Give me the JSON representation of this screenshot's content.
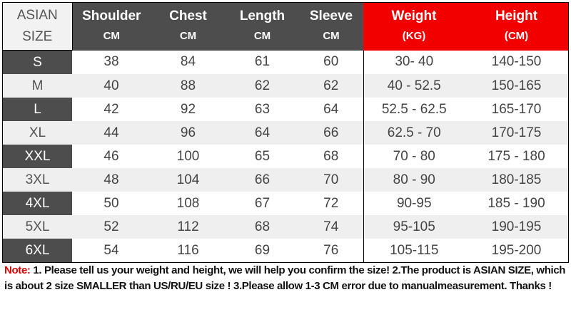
{
  "header": {
    "size_label": [
      "ASIAN",
      "SIZE"
    ],
    "columns": [
      {
        "name": "Shoulder",
        "unit": "CM"
      },
      {
        "name": "Chest",
        "unit": "CM"
      },
      {
        "name": "Length",
        "unit": "CM"
      },
      {
        "name": "Sleeve",
        "unit": "CM"
      },
      {
        "name": "Weight",
        "unit": "(KG)"
      },
      {
        "name": "Height",
        "unit": "(CM)"
      }
    ]
  },
  "rows": [
    {
      "size": "S",
      "values": [
        "38",
        "84",
        "61",
        "60",
        "30- 40",
        "140-150"
      ]
    },
    {
      "size": "M",
      "values": [
        "40",
        "88",
        "62",
        "62",
        "40 - 52.5",
        "150-165"
      ]
    },
    {
      "size": "L",
      "values": [
        "42",
        "92",
        "63",
        "64",
        "52.5 - 62.5",
        "165-170"
      ]
    },
    {
      "size": "XL",
      "values": [
        "44",
        "96",
        "64",
        "66",
        "62.5 - 70",
        "170-175"
      ]
    },
    {
      "size": "XXL",
      "values": [
        "46",
        "100",
        "65",
        "68",
        "70  - 80",
        "175 - 180"
      ]
    },
    {
      "size": "3XL",
      "values": [
        "48",
        "104",
        "66",
        "70",
        "80  - 90",
        "180-185"
      ]
    },
    {
      "size": "4XL",
      "values": [
        "50",
        "108",
        "67",
        "72",
        "90-95",
        "185 - 190"
      ]
    },
    {
      "size": "5XL",
      "values": [
        "52",
        "112",
        "68",
        "74",
        "95-105",
        "190-195"
      ]
    },
    {
      "size": "6XL",
      "values": [
        "54",
        "116",
        "69",
        "76",
        "105-115",
        "195-200"
      ]
    }
  ],
  "note": {
    "label": "Note:",
    "text": " 1. Please tell us your weight and height, we will help you confirm the size!  2.The product is ASIAN SIZE, which is about 2 size SMALLER than US/RU/EU size ! 3.Please allow 1-3 CM error due to manualmeasurement.  Thanks !"
  },
  "colors": {
    "header_dark": "#4d4d4d",
    "header_red": "#f20000",
    "note_label": "#e00000"
  }
}
